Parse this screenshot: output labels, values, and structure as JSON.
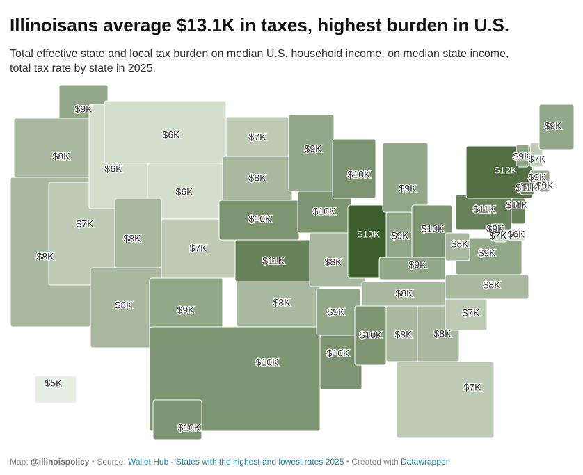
{
  "chart_data": {
    "type": "choropleth",
    "title": "Illinoisans average $13.1K in taxes, highest burden in U.S.",
    "subtitle": [
      "Total effective state and local tax burden on median U.S. household income, on median state income,",
      "total tax rate by state in 2025."
    ],
    "values": [
      9,
      8,
      8,
      7,
      6,
      6,
      6,
      8,
      8,
      7,
      9,
      7,
      8,
      10,
      11,
      8,
      10,
      9,
      10,
      8,
      9,
      10,
      10,
      13,
      9,
      9,
      10,
      9,
      8,
      10,
      8,
      8,
      7,
      7,
      8,
      9,
      8,
      11,
      12,
      11,
      9,
      7,
      6,
      9,
      7,
      9,
      11,
      9,
      9,
      5,
      10
    ],
    "value_labels": [
      "$9K",
      "$8K",
      "$8K",
      "$7K",
      "$6K",
      "$6K",
      "$6K",
      "$8K",
      "$8K",
      "$7K",
      "$9K",
      "$7K",
      "$8K",
      "$10K",
      "$11K",
      "$8K",
      "$10K",
      "$9K",
      "$10K",
      "$8K",
      "$9K",
      "$10K",
      "$10K",
      "$13K",
      "$9K",
      "$9K",
      "$10K",
      "$9K",
      "$8K",
      "$10K",
      "$8K",
      "$8K",
      "$7K",
      "$7K",
      "$8K",
      "$9K",
      "$8K",
      "$11K",
      "$12K",
      "$11K",
      "$9K",
      "$7K",
      "$6K",
      "$9K",
      "$7K",
      "$9K",
      "$11K",
      "$9K",
      "$9K",
      "$5K",
      "$10K"
    ],
    "color_scale": [
      "#e8f0e3",
      "#3e5e2e"
    ],
    "footer": {
      "map_prefix": "Map:",
      "author": "@illinoispolicy",
      "source_prefix": "• Source:",
      "source": "Wallet Hub - States with the highest and lowest rates 2025",
      "created_prefix": "• Created with",
      "tool": "Datawrapper"
    }
  }
}
